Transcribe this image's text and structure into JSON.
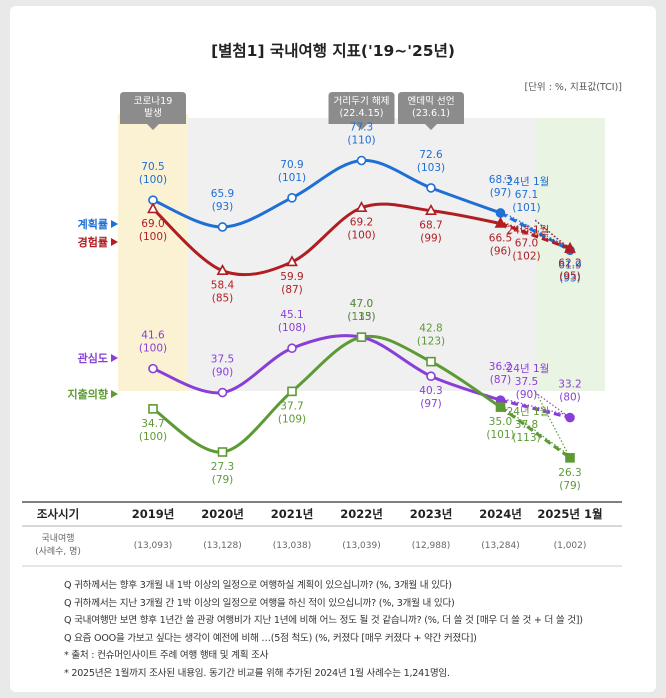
{
  "title": "[별첨1] 국내여행 지표('19~'25년)",
  "unit": "[단위 : %, 지표값(TCI)]",
  "annotations": {
    "covid": [
      "코로나19",
      "발생"
    ],
    "distancing": [
      "거리두기 해제",
      "(22.4.15)"
    ],
    "endemic": [
      "엔데믹 선언",
      "(23.6.1)"
    ]
  },
  "legend": [
    "계획률",
    "경험률",
    "관심도",
    "지출의향"
  ],
  "colors": {
    "계획률": "#1e6fd6",
    "경험률": "#b01e22",
    "관심도": "#8a3ed8",
    "지출의향": "#5d9a36",
    "col_covid": "#fbf2d3",
    "col_2025": "#e9f4e2",
    "col_other": "#f0f0f0",
    "annotation_box": "#8c8c8c"
  },
  "chart_data": {
    "type": "line",
    "categories": [
      "2019년",
      "2020년",
      "2021년",
      "2022년",
      "2023년",
      "2024년",
      "2025년 1월"
    ],
    "series": [
      {
        "name": "계획률",
        "values": [
          70.5,
          65.9,
          70.9,
          77.3,
          72.6,
          68.3,
          61.9
        ],
        "tci": [
          "(100)",
          "(93)",
          "(101)",
          "(110)",
          "(103)",
          "(97)",
          "(93)"
        ],
        "ref_2024_jan": {
          "value": 67.1,
          "tci": "(101)"
        }
      },
      {
        "name": "경험률",
        "values": [
          69.0,
          58.4,
          59.9,
          69.2,
          68.7,
          66.5,
          62.2
        ],
        "tci": [
          "(100)",
          "(85)",
          "(87)",
          "(100)",
          "(99)",
          "(96)",
          "(95)"
        ],
        "ref_2024_jan": {
          "value": 67.0,
          "tci": "(102)"
        }
      },
      {
        "name": "관심도",
        "values": [
          41.6,
          37.5,
          45.1,
          47.0,
          40.3,
          36.2,
          33.2
        ],
        "tci": [
          "(100)",
          "(90)",
          "(108)",
          "(113)",
          "(97)",
          "(87)",
          "(80)"
        ],
        "ref_2024_jan": {
          "value": 37.5,
          "tci": "(90)"
        }
      },
      {
        "name": "지출의향",
        "values": [
          34.7,
          27.3,
          37.7,
          47.0,
          42.8,
          35.0,
          26.3
        ],
        "tci": [
          "(100)",
          "(79)",
          "(109)",
          "(135)",
          "(123)",
          "(101)",
          "(79)"
        ],
        "ref_2024_jan": {
          "value": 37.8,
          "tci": "(113)"
        }
      }
    ],
    "ref_label": "'24년 1월",
    "ylim": [
      20,
      82
    ],
    "grid": false,
    "legend_position": "left"
  },
  "table": {
    "header": "조사시기",
    "years": [
      "2019년",
      "2020년",
      "2021년",
      "2022년",
      "2023년",
      "2024년",
      "2025년 1월"
    ],
    "row_label": [
      "국내여행",
      "(사례수, 명)"
    ],
    "counts": [
      "(13,093)",
      "(13,128)",
      "(13,038)",
      "(13,039)",
      "(12,988)",
      "(13,284)",
      "(1,002)"
    ]
  },
  "notes": [
    "Q 귀하께서는 향후 3개월 내 1박 이상의 일정으로 여행하실 계획이 있으십니까? (%, 3개월 내 있다)",
    "Q 귀하께서는 지난 3개월 간 1박 이상의 일정으로 여행을 하신 적이 있으십니까? (%, 3개월 내 있다)",
    "Q 국내여행만 보면 향후 1년간 쓸 관광 여행비가 지난 1년에 비해 어느 정도 될 것 같습니까? (%, 더 쓸 것 [매우 더 쓸 것 + 더 쓸 것])",
    "Q 요즘 OOO을 가보고 싶다는 생각이 예전에 비해 …(5점 척도) (%, 커졌다 [매우 커졌다 + 약간 커졌다])",
    "* 출처 : 컨슈머인사이트 주례 여행 행태 및 계획 조사",
    "* 2025년은 1월까지 조사된 내용임. 동기간 비교를 위해 추가된 2024년 1월 사례수는 1,241명임."
  ]
}
